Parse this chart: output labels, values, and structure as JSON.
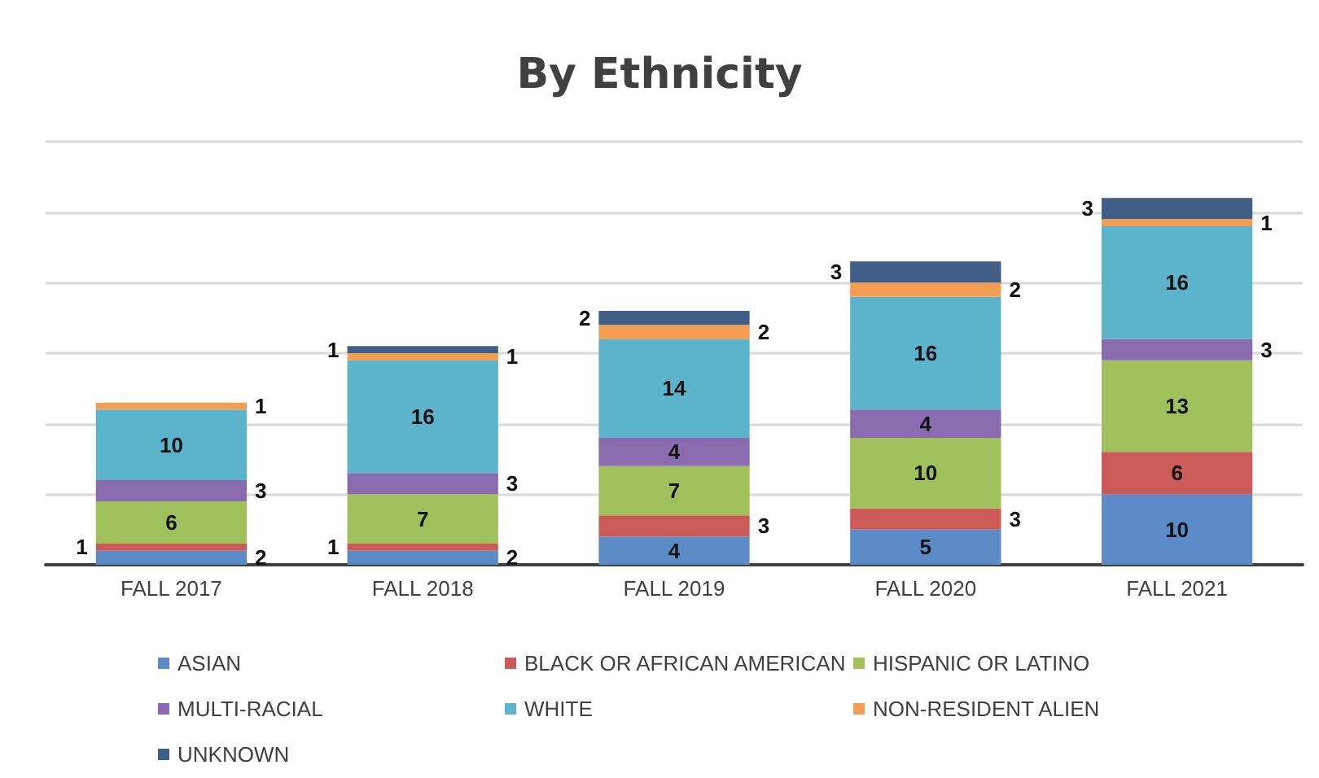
{
  "chart_data": {
    "type": "bar",
    "title": "By Ethnicity",
    "stacked": true,
    "data_labels": true,
    "grid": "y",
    "legend": "bottom",
    "tick_labels": "x",
    "categories": [
      "FALL 2017",
      "FALL 2018",
      "FALL 2019",
      "FALL 2020",
      "FALL 2021"
    ],
    "series": [
      {
        "name": "ASIAN",
        "color": "#5b8cc8",
        "values": [
          2,
          2,
          4,
          5,
          10
        ]
      },
      {
        "name": "BLACK OR AFRICAN AMERICAN",
        "color": "#cc5a56",
        "values": [
          1,
          1,
          3,
          3,
          6
        ]
      },
      {
        "name": "HISPANIC OR LATINO",
        "color": "#9fc05a",
        "values": [
          6,
          7,
          7,
          10,
          13
        ]
      },
      {
        "name": "MULTI-RACIAL",
        "color": "#8a6bb0",
        "values": [
          3,
          3,
          4,
          4,
          3
        ]
      },
      {
        "name": "WHITE",
        "color": "#5bb4cc",
        "values": [
          10,
          16,
          14,
          16,
          16
        ]
      },
      {
        "name": "NON-RESIDENT ALIEN",
        "color": "#f59d50",
        "values": [
          1,
          1,
          2,
          2,
          1
        ]
      },
      {
        "name": "UNKNOWN",
        "color": "#3f5f86",
        "values": [
          null,
          1,
          2,
          3,
          3
        ]
      }
    ]
  }
}
